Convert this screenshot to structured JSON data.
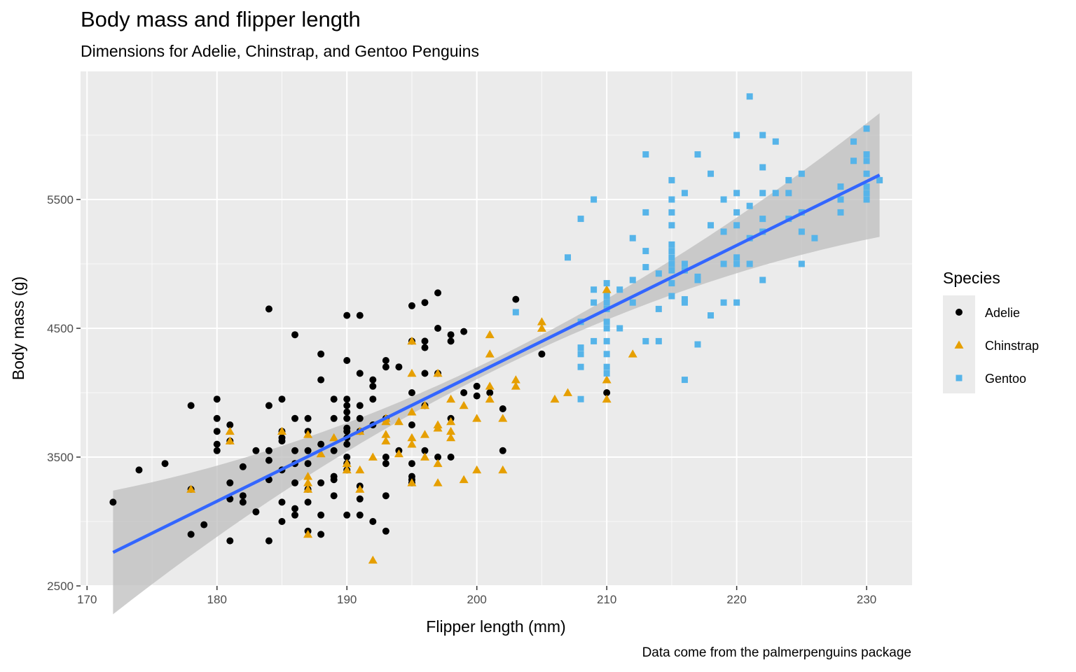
{
  "chart_data": {
    "type": "scatter",
    "title": "Body mass and flipper length",
    "subtitle": "Dimensions for Adelie, Chinstrap, and Gentoo Penguins",
    "caption": "Data come from the palmerpenguins package",
    "xlabel": "Flipper length (mm)",
    "ylabel": "Body mass (g)",
    "xlim": [
      169.5,
      233.5
    ],
    "ylim": [
      2500,
      6500
    ],
    "xticks": [
      170,
      180,
      190,
      200,
      210,
      220,
      230
    ],
    "yticks": [
      2500,
      3500,
      4500,
      5500
    ],
    "grid": true,
    "legend": {
      "title": "Species",
      "placement": "right"
    },
    "trend": {
      "x": [
        172,
        231
      ],
      "y": [
        2760,
        5690
      ],
      "color": "#3366FF",
      "band_color": "#bdbdbd"
    },
    "series": [
      {
        "name": "Adelie",
        "color": "#000000",
        "marker": "circle",
        "points": [
          [
            172,
            3150
          ],
          [
            174,
            3400
          ],
          [
            176,
            3450
          ],
          [
            178,
            2900
          ],
          [
            178,
            3900
          ],
          [
            178,
            3250
          ],
          [
            179,
            2975
          ],
          [
            180,
            3950
          ],
          [
            180,
            3800
          ],
          [
            180,
            3700
          ],
          [
            180,
            3600
          ],
          [
            180,
            3550
          ],
          [
            181,
            2850
          ],
          [
            181,
            3300
          ],
          [
            181,
            3175
          ],
          [
            181,
            3625
          ],
          [
            181,
            3750
          ],
          [
            182,
            3200
          ],
          [
            182,
            3150
          ],
          [
            182,
            3425
          ],
          [
            183,
            3075
          ],
          [
            183,
            3550
          ],
          [
            184,
            2850
          ],
          [
            184,
            3325
          ],
          [
            184,
            3475
          ],
          [
            184,
            3550
          ],
          [
            184,
            3900
          ],
          [
            184,
            4650
          ],
          [
            185,
            3000
          ],
          [
            185,
            3150
          ],
          [
            185,
            3400
          ],
          [
            185,
            3625
          ],
          [
            185,
            3650
          ],
          [
            185,
            3700
          ],
          [
            185,
            3950
          ],
          [
            186,
            3050
          ],
          [
            186,
            3100
          ],
          [
            186,
            3300
          ],
          [
            186,
            3450
          ],
          [
            186,
            3550
          ],
          [
            186,
            3800
          ],
          [
            186,
            4450
          ],
          [
            187,
            2925
          ],
          [
            187,
            3150
          ],
          [
            187,
            3250
          ],
          [
            187,
            3450
          ],
          [
            187,
            3550
          ],
          [
            187,
            3700
          ],
          [
            187,
            3800
          ],
          [
            188,
            2900
          ],
          [
            188,
            3050
          ],
          [
            188,
            3300
          ],
          [
            188,
            3600
          ],
          [
            188,
            4100
          ],
          [
            188,
            4300
          ],
          [
            189,
            3200
          ],
          [
            189,
            3325
          ],
          [
            189,
            3350
          ],
          [
            189,
            3550
          ],
          [
            189,
            3800
          ],
          [
            189,
            3950
          ],
          [
            190,
            3050
          ],
          [
            190,
            3400
          ],
          [
            190,
            3450
          ],
          [
            190,
            3500
          ],
          [
            190,
            3600
          ],
          [
            190,
            3650
          ],
          [
            190,
            3700
          ],
          [
            190,
            3725
          ],
          [
            190,
            3800
          ],
          [
            190,
            3850
          ],
          [
            190,
            3900
          ],
          [
            190,
            3950
          ],
          [
            190,
            4250
          ],
          [
            190,
            4600
          ],
          [
            191,
            3050
          ],
          [
            191,
            3175
          ],
          [
            191,
            3275
          ],
          [
            191,
            3700
          ],
          [
            191,
            3800
          ],
          [
            191,
            3900
          ],
          [
            191,
            4150
          ],
          [
            191,
            4600
          ],
          [
            192,
            3000
          ],
          [
            192,
            3750
          ],
          [
            192,
            3950
          ],
          [
            192,
            4050
          ],
          [
            192,
            4100
          ],
          [
            193,
            2925
          ],
          [
            193,
            3200
          ],
          [
            193,
            3450
          ],
          [
            193,
            3500
          ],
          [
            193,
            3800
          ],
          [
            193,
            4200
          ],
          [
            193,
            4250
          ],
          [
            194,
            3550
          ],
          [
            194,
            4200
          ],
          [
            195,
            3300
          ],
          [
            195,
            3325
          ],
          [
            195,
            3350
          ],
          [
            195,
            3450
          ],
          [
            195,
            3750
          ],
          [
            195,
            4000
          ],
          [
            195,
            4400
          ],
          [
            195,
            4675
          ],
          [
            196,
            3550
          ],
          [
            196,
            3900
          ],
          [
            196,
            4150
          ],
          [
            196,
            4350
          ],
          [
            196,
            4400
          ],
          [
            196,
            4700
          ],
          [
            197,
            3500
          ],
          [
            197,
            4150
          ],
          [
            197,
            4500
          ],
          [
            197,
            4775
          ],
          [
            198,
            3500
          ],
          [
            198,
            3800
          ],
          [
            198,
            4400
          ],
          [
            198,
            4450
          ],
          [
            199,
            4475
          ],
          [
            199,
            4000
          ],
          [
            200,
            4050
          ],
          [
            200,
            3975
          ],
          [
            201,
            4000
          ],
          [
            202,
            3550
          ],
          [
            202,
            3875
          ],
          [
            203,
            4725
          ],
          [
            205,
            4300
          ],
          [
            210,
            4000
          ]
        ]
      },
      {
        "name": "Chinstrap",
        "color": "#E69F00",
        "marker": "triangle",
        "points": [
          [
            178,
            3250
          ],
          [
            181,
            3700
          ],
          [
            181,
            3625
          ],
          [
            185,
            3700
          ],
          [
            187,
            2900
          ],
          [
            187,
            3250
          ],
          [
            187,
            3300
          ],
          [
            187,
            3350
          ],
          [
            187,
            3675
          ],
          [
            188,
            3525
          ],
          [
            189,
            3650
          ],
          [
            190,
            3400
          ],
          [
            190,
            3450
          ],
          [
            191,
            3250
          ],
          [
            191,
            3400
          ],
          [
            191,
            3700
          ],
          [
            192,
            2700
          ],
          [
            192,
            3500
          ],
          [
            193,
            3625
          ],
          [
            193,
            3675
          ],
          [
            193,
            3775
          ],
          [
            193,
            3800
          ],
          [
            194,
            3525
          ],
          [
            194,
            3775
          ],
          [
            195,
            3300
          ],
          [
            195,
            3600
          ],
          [
            195,
            3650
          ],
          [
            195,
            3850
          ],
          [
            195,
            4150
          ],
          [
            195,
            4400
          ],
          [
            196,
            3500
          ],
          [
            196,
            3675
          ],
          [
            196,
            3900
          ],
          [
            197,
            3300
          ],
          [
            197,
            3450
          ],
          [
            197,
            3725
          ],
          [
            197,
            3750
          ],
          [
            197,
            4150
          ],
          [
            198,
            3650
          ],
          [
            198,
            3700
          ],
          [
            198,
            3775
          ],
          [
            198,
            3950
          ],
          [
            199,
            3325
          ],
          [
            199,
            3900
          ],
          [
            200,
            3400
          ],
          [
            200,
            3800
          ],
          [
            201,
            3950
          ],
          [
            201,
            4050
          ],
          [
            201,
            4300
          ],
          [
            201,
            4450
          ],
          [
            202,
            3400
          ],
          [
            202,
            3800
          ],
          [
            203,
            4050
          ],
          [
            203,
            4100
          ],
          [
            205,
            4500
          ],
          [
            205,
            4550
          ],
          [
            206,
            3950
          ],
          [
            207,
            4000
          ],
          [
            210,
            3950
          ],
          [
            210,
            4100
          ],
          [
            210,
            4800
          ],
          [
            212,
            4300
          ]
        ]
      },
      {
        "name": "Gentoo",
        "color": "#56B4E9",
        "marker": "square",
        "points": [
          [
            203,
            4625
          ],
          [
            207,
            5050
          ],
          [
            208,
            3950
          ],
          [
            208,
            4200
          ],
          [
            208,
            4300
          ],
          [
            208,
            4350
          ],
          [
            208,
            4550
          ],
          [
            208,
            5350
          ],
          [
            209,
            4400
          ],
          [
            209,
            4700
          ],
          [
            209,
            4800
          ],
          [
            209,
            5500
          ],
          [
            210,
            4150
          ],
          [
            210,
            4200
          ],
          [
            210,
            4300
          ],
          [
            210,
            4400
          ],
          [
            210,
            4500
          ],
          [
            210,
            4550
          ],
          [
            210,
            4650
          ],
          [
            210,
            4700
          ],
          [
            210,
            4750
          ],
          [
            210,
            4850
          ],
          [
            211,
            4500
          ],
          [
            211,
            4800
          ],
          [
            212,
            4875
          ],
          [
            212,
            5200
          ],
          [
            212,
            4700
          ],
          [
            213,
            4400
          ],
          [
            213,
            4975
          ],
          [
            213,
            5100
          ],
          [
            213,
            5400
          ],
          [
            213,
            5850
          ],
          [
            214,
            4400
          ],
          [
            214,
            4650
          ],
          [
            214,
            4925
          ],
          [
            215,
            4750
          ],
          [
            215,
            4850
          ],
          [
            215,
            4950
          ],
          [
            215,
            5000
          ],
          [
            215,
            5050
          ],
          [
            215,
            5100
          ],
          [
            215,
            5150
          ],
          [
            215,
            5300
          ],
          [
            215,
            5400
          ],
          [
            215,
            5500
          ],
          [
            215,
            5650
          ],
          [
            216,
            4100
          ],
          [
            216,
            4700
          ],
          [
            216,
            4725
          ],
          [
            216,
            4950
          ],
          [
            216,
            5000
          ],
          [
            216,
            5550
          ],
          [
            217,
            4375
          ],
          [
            217,
            4875
          ],
          [
            217,
            4900
          ],
          [
            217,
            5850
          ],
          [
            218,
            4600
          ],
          [
            218,
            5300
          ],
          [
            218,
            5700
          ],
          [
            219,
            4700
          ],
          [
            219,
            5000
          ],
          [
            219,
            5250
          ],
          [
            219,
            5500
          ],
          [
            220,
            4700
          ],
          [
            220,
            5000
          ],
          [
            220,
            5050
          ],
          [
            220,
            5300
          ],
          [
            220,
            5400
          ],
          [
            220,
            5550
          ],
          [
            220,
            6000
          ],
          [
            221,
            5000
          ],
          [
            221,
            5200
          ],
          [
            221,
            5450
          ],
          [
            221,
            6300
          ],
          [
            222,
            4875
          ],
          [
            222,
            5250
          ],
          [
            222,
            5350
          ],
          [
            222,
            5550
          ],
          [
            222,
            5750
          ],
          [
            222,
            6000
          ],
          [
            223,
            5550
          ],
          [
            223,
            5950
          ],
          [
            224,
            5350
          ],
          [
            224,
            5550
          ],
          [
            224,
            5650
          ],
          [
            225,
            5000
          ],
          [
            225,
            5250
          ],
          [
            225,
            5400
          ],
          [
            225,
            5700
          ],
          [
            226,
            5200
          ],
          [
            228,
            5400
          ],
          [
            228,
            5500
          ],
          [
            228,
            5600
          ],
          [
            229,
            5800
          ],
          [
            229,
            5950
          ],
          [
            230,
            5500
          ],
          [
            230,
            5550
          ],
          [
            230,
            5600
          ],
          [
            230,
            5700
          ],
          [
            230,
            5800
          ],
          [
            230,
            5850
          ],
          [
            230,
            6050
          ],
          [
            231,
            5650
          ]
        ]
      }
    ]
  }
}
